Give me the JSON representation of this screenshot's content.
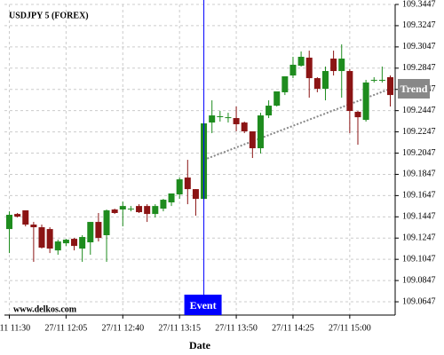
{
  "chart_data": {
    "type": "candlestick",
    "title": "USDJPY 5 (FOREX)",
    "watermark": "www.delkos.com",
    "x_label": "Date",
    "x": [
      "27/11 11:30",
      "27/11 11:35",
      "27/11 11:40",
      "27/11 11:45",
      "27/11 11:50",
      "27/11 11:55",
      "27/11 12:00",
      "27/11 12:05",
      "27/11 12:10",
      "27/11 12:15",
      "27/11 12:20",
      "27/11 12:25",
      "27/11 12:30",
      "27/11 12:35",
      "27/11 12:40",
      "27/11 12:45",
      "27/11 12:50",
      "27/11 12:55",
      "27/11 13:00",
      "27/11 13:05",
      "27/11 13:10",
      "27/11 13:15",
      "27/11 13:20",
      "27/11 13:25",
      "27/11 13:30",
      "27/11 13:35",
      "27/11 13:40",
      "27/11 13:45",
      "27/11 13:50",
      "27/11 13:55",
      "27/11 14:00",
      "27/11 14:05",
      "27/11 14:10",
      "27/11 14:15",
      "27/11 14:20",
      "27/11 14:25",
      "27/11 14:30",
      "27/11 14:35",
      "27/11 14:40",
      "27/11 14:45",
      "27/11 14:50",
      "27/11 14:55",
      "27/11 15:00",
      "27/11 15:05",
      "27/11 15:10",
      "27/11 15:15",
      "27/11 15:20",
      "27/11 15:25"
    ],
    "open": [
      109.1332,
      109.1474,
      109.1508,
      109.1374,
      109.1349,
      109.1332,
      109.1131,
      109.1198,
      109.124,
      109.1148,
      109.1207,
      109.1399,
      109.1274,
      109.1516,
      109.1516,
      109.1524,
      109.1549,
      109.1549,
      109.1474,
      109.1524,
      109.1583,
      109.1658,
      109.1817,
      109.1708,
      109.1616,
      109.2335,
      109.2394,
      109.2385,
      109.2377,
      109.2335,
      109.2252,
      109.2093,
      109.2402,
      109.2494,
      109.262,
      109.2778,
      109.287,
      109.2946,
      109.2753,
      109.2653,
      109.2937,
      109.282,
      109.282,
      109.2436,
      109.236,
      109.2737,
      109.2737,
      109.2762
    ],
    "high": [
      109.1499,
      109.1483,
      109.1508,
      109.1399,
      109.1374,
      109.1349,
      109.1232,
      109.124,
      109.1249,
      109.1274,
      109.1399,
      109.1483,
      109.1516,
      109.1524,
      109.1591,
      109.1549,
      109.1566,
      109.1566,
      109.1566,
      109.1616,
      109.1667,
      109.1817,
      109.1984,
      109.1708,
      109.2327,
      109.2544,
      109.2444,
      109.2427,
      109.2486,
      109.2344,
      109.2252,
      109.2427,
      109.2544,
      109.2628,
      109.277,
      109.2954,
      109.3004,
      109.3012,
      109.2762,
      109.2862,
      109.3012,
      109.3071,
      109.2837,
      109.2444,
      109.2737,
      109.2762,
      109.2862,
      109.2778
    ],
    "low": [
      109.1106,
      109.1441,
      109.1357,
      109.1023,
      109.1148,
      109.1106,
      109.109,
      109.1173,
      109.1131,
      109.1023,
      109.109,
      109.1215,
      109.1023,
      109.1474,
      109.1357,
      109.1499,
      109.1483,
      109.1399,
      109.1441,
      109.1499,
      109.1549,
      109.1616,
      109.1566,
      109.1458,
      109.1608,
      109.2235,
      109.2344,
      109.2335,
      109.2252,
      109.2235,
      109.2001,
      109.2043,
      109.2377,
      109.2486,
      109.2594,
      109.2753,
      109.2862,
      109.2569,
      109.262,
      109.2544,
      109.2778,
      109.2569,
      109.2235,
      109.2126,
      109.2344,
      109.2712,
      109.2712,
      109.2486
    ],
    "close": [
      109.1466,
      109.1449,
      109.1374,
      109.1349,
      109.1157,
      109.1148,
      109.1215,
      109.1232,
      109.1173,
      109.1257,
      109.1399,
      109.1249,
      109.1508,
      109.1483,
      109.1549,
      109.1524,
      109.1491,
      109.1474,
      109.1549,
      109.1608,
      109.1667,
      109.18,
      109.1708,
      109.1616,
      109.2327,
      109.2402,
      109.2394,
      109.2385,
      109.2319,
      109.2252,
      109.2093,
      109.2402,
      109.2494,
      109.2628,
      109.277,
      109.2879,
      109.2954,
      109.2753,
      109.2653,
      109.282,
      109.282,
      109.2937,
      109.2444,
      109.2385,
      109.2712,
      109.2737,
      109.2737,
      109.2594
    ],
    "up_color": "#1e8c1e",
    "down_color": "#8b1414",
    "ylim": [
      109.0522,
      109.3447
    ],
    "yticks": [
      109.0647,
      109.0847,
      109.1047,
      109.1247,
      109.1447,
      109.1647,
      109.1847,
      109.2047,
      109.2247,
      109.2447,
      109.2647,
      109.2847,
      109.3047,
      109.3247,
      109.3447
    ],
    "xticks": [
      "27/11 11:30",
      "27/11 12:05",
      "27/11 12:40",
      "27/11 13:15",
      "27/11 13:50",
      "27/11 14:25",
      "27/11 15:00"
    ],
    "grid": true,
    "event": {
      "label": "Event",
      "x": "27/11 13:30",
      "color": "#0000ff"
    },
    "trend": {
      "label": "Trend",
      "x": [
        "27/11 13:30",
        "27/11 15:25"
      ],
      "y": [
        109.1984,
        109.2653
      ],
      "color": "#888888"
    }
  }
}
